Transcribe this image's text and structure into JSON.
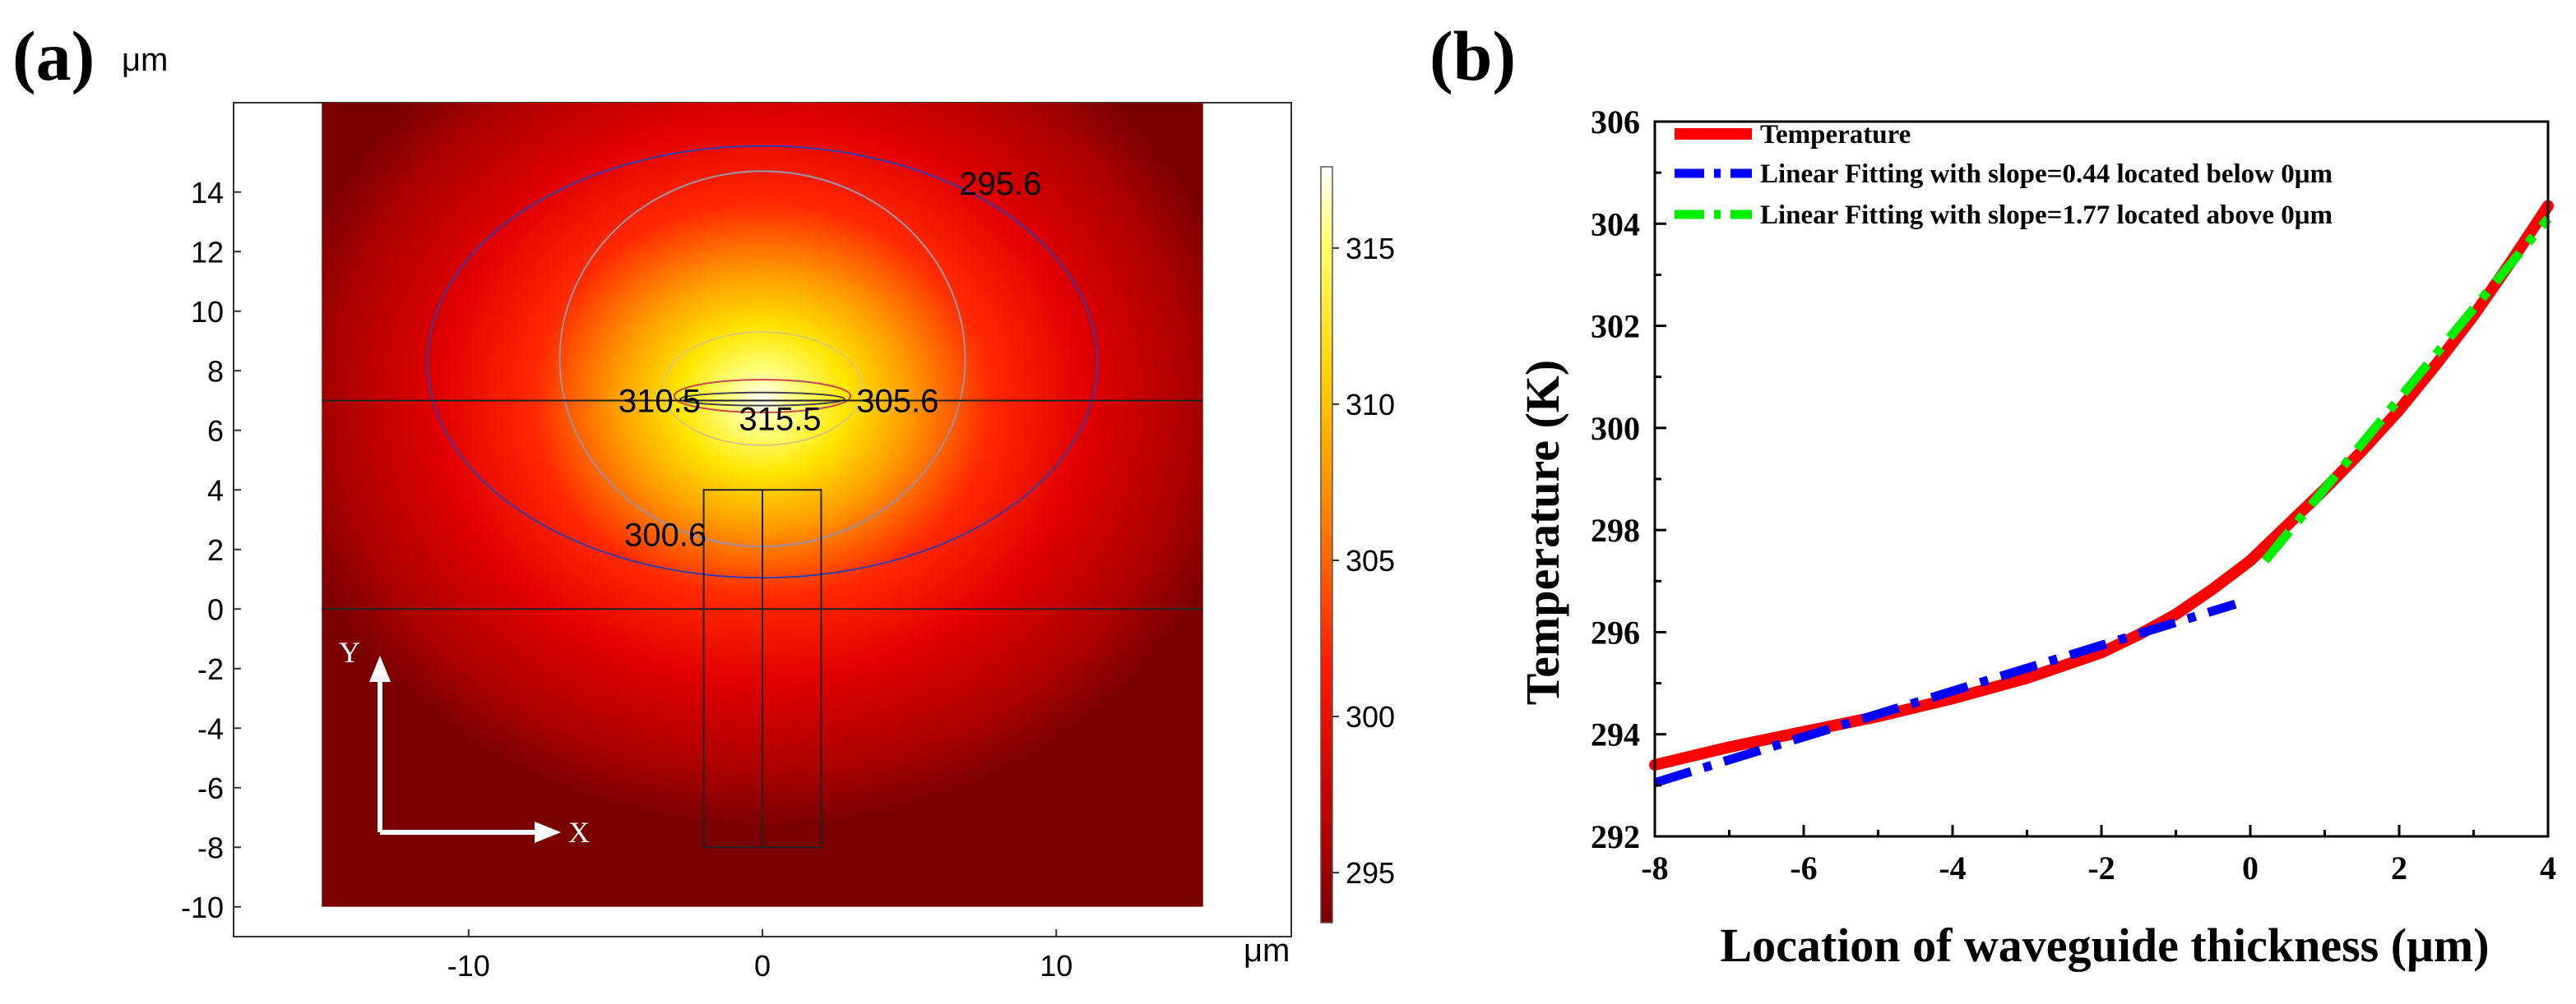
{
  "chart_data": [
    {
      "panel_label": "(a)",
      "type": "heatmap",
      "x_unit": "μm",
      "y_unit": "μm",
      "xlim": [
        -18,
        18
      ],
      "ylim": [
        -11,
        17
      ],
      "domain_x": [
        -15,
        15
      ],
      "domain_y": [
        -10,
        17
      ],
      "x_ticks": [
        "-10",
        "0",
        "10"
      ],
      "x_tick_values": [
        -10,
        0,
        10
      ],
      "y_ticks": [
        "14",
        "12",
        "10",
        "8",
        "6",
        "4",
        "2",
        "0",
        "-2",
        "-4",
        "-6",
        "-8",
        "-10"
      ],
      "y_tick_values": [
        14,
        12,
        10,
        8,
        6,
        4,
        2,
        0,
        -2,
        -4,
        -6,
        -8,
        -10
      ],
      "colorbar": {
        "ticks": [
          "315",
          "310",
          "305",
          "300",
          "295"
        ],
        "tick_values": [
          315,
          310,
          305,
          300,
          295
        ],
        "range": [
          293.4,
          317.6
        ],
        "colors": [
          "#ffffff",
          "#ffff60",
          "#ffd000",
          "#ff8000",
          "#ff1a00",
          "#c00000",
          "#7a0000"
        ]
      },
      "heat_center": {
        "x": 0,
        "y": 7
      },
      "contour_labels": [
        {
          "text": "295.6",
          "x": 8.1,
          "y": 14.3
        },
        {
          "text": "310.5",
          "x": -3.5,
          "y": 7.0
        },
        {
          "text": "315.5",
          "x": 0.6,
          "y": 6.4
        },
        {
          "text": "305.6",
          "x": 4.6,
          "y": 7.0
        },
        {
          "text": "300.6",
          "x": -3.3,
          "y": 2.5
        }
      ],
      "horizontal_lines_y": [
        7,
        0
      ],
      "waveguide_rects": [
        {
          "x0": -2,
          "x1": 0,
          "y0": -8,
          "y1": 4
        },
        {
          "x0": 0,
          "x1": 2,
          "y0": -8,
          "y1": 4
        }
      ],
      "axes_arrow_labels": {
        "y": "Y",
        "x": "X"
      }
    },
    {
      "panel_label": "(b)",
      "type": "line",
      "xlabel": "Location of waveguide thickness (μm)",
      "ylabel": "Temperature (K)",
      "xlim": [
        -8,
        4
      ],
      "ylim": [
        292,
        306
      ],
      "x_ticks": [
        "-8",
        "-6",
        "-4",
        "-2",
        "0",
        "2",
        "4"
      ],
      "x_tick_values": [
        -8,
        -6,
        -4,
        -2,
        0,
        2,
        4
      ],
      "y_ticks": [
        "292",
        "294",
        "296",
        "298",
        "300",
        "302",
        "304",
        "306"
      ],
      "y_tick_values": [
        292,
        294,
        296,
        298,
        300,
        302,
        304,
        306
      ],
      "legend_position": "top-left",
      "series": [
        {
          "name": "Temperature",
          "color": "#ff0000",
          "style": "solid",
          "x": [
            -8,
            -7,
            -6,
            -5,
            -4,
            -3,
            -2,
            -1.5,
            -1,
            -0.5,
            0,
            0.5,
            1,
            1.5,
            2,
            2.5,
            3,
            3.5,
            4
          ],
          "y": [
            293.4,
            293.75,
            294.05,
            294.35,
            294.7,
            295.1,
            295.6,
            295.95,
            296.35,
            296.85,
            297.4,
            298.1,
            298.8,
            299.55,
            300.35,
            301.25,
            302.2,
            303.25,
            304.35
          ]
        },
        {
          "name": "Linear Fitting with slope=0.44 located below 0μm",
          "color": "#0000ff",
          "style": "dash-dot",
          "x": [
            -8,
            -0.2
          ],
          "y": [
            293.05,
            296.55
          ]
        },
        {
          "name": "Linear Fitting with slope=1.77 located above 0μm",
          "color": "#00ee00",
          "style": "dash-dot",
          "x": [
            0.2,
            4
          ],
          "y": [
            297.4,
            304.1
          ]
        }
      ]
    }
  ]
}
